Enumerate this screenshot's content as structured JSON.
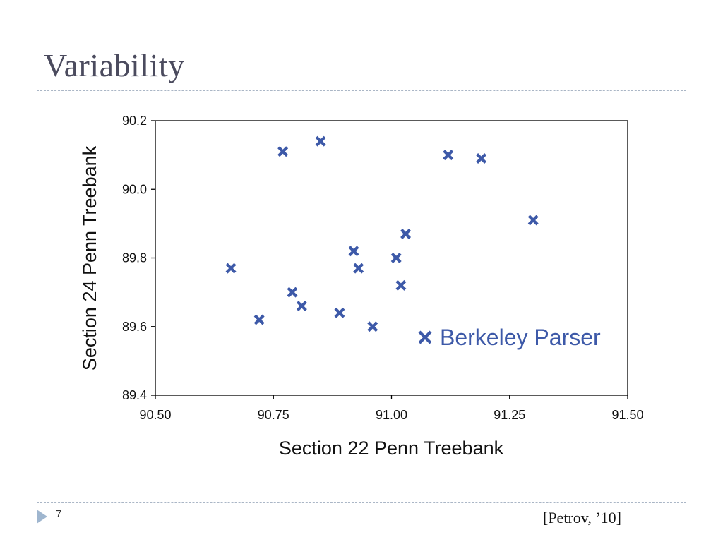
{
  "slide": {
    "title": "Variability",
    "page_number": "7",
    "citation": "[Petrov, ’10]"
  },
  "colors": {
    "marker": "#3d59a8",
    "title": "#4b4b5e",
    "rule": "#aab6c6",
    "nav_arrow": "#9fb6cf"
  },
  "icons": {
    "nav_arrow": "triangle-right-icon",
    "marker": "x-cross-icon"
  },
  "chart_data": {
    "type": "scatter",
    "title": "",
    "xlabel": "Section 22 Penn Treebank",
    "ylabel": "Section 24 Penn Treebank",
    "xlim": [
      90.5,
      91.5
    ],
    "ylim": [
      89.4,
      90.2
    ],
    "x_ticks": [
      "90.50",
      "90.75",
      "91.00",
      "91.25",
      "91.50"
    ],
    "y_ticks": [
      "89.4",
      "89.6",
      "89.8",
      "90.0",
      "90.2"
    ],
    "grid": false,
    "legend_position": "bottom-right",
    "series": [
      {
        "name": "Berkeley Parser",
        "marker": "x",
        "points": [
          {
            "x": 90.66,
            "y": 89.77
          },
          {
            "x": 90.72,
            "y": 89.62
          },
          {
            "x": 90.77,
            "y": 90.11
          },
          {
            "x": 90.79,
            "y": 89.7
          },
          {
            "x": 90.81,
            "y": 89.66
          },
          {
            "x": 90.85,
            "y": 90.14
          },
          {
            "x": 90.89,
            "y": 89.64
          },
          {
            "x": 90.92,
            "y": 89.82
          },
          {
            "x": 90.93,
            "y": 89.77
          },
          {
            "x": 90.96,
            "y": 89.6
          },
          {
            "x": 91.01,
            "y": 89.8
          },
          {
            "x": 91.02,
            "y": 89.72
          },
          {
            "x": 91.03,
            "y": 89.87
          },
          {
            "x": 91.12,
            "y": 90.1
          },
          {
            "x": 91.19,
            "y": 90.09
          },
          {
            "x": 91.3,
            "y": 89.91
          }
        ]
      }
    ]
  }
}
